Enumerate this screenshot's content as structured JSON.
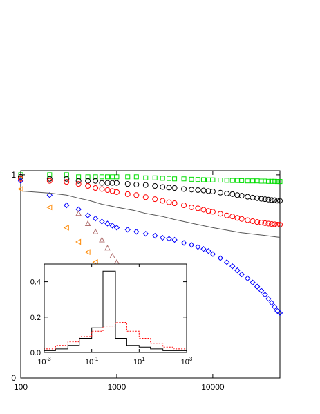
{
  "chart_data": [
    {
      "type": "scatter",
      "title": "",
      "xlabel": "",
      "ylabel": "",
      "x_scale": "log",
      "xlim": [
        100,
        50000
      ],
      "ylim": [
        0,
        1.02
      ],
      "x_ticks": [
        {
          "value": 100,
          "label": "100"
        },
        {
          "value": 1000,
          "label": "1000"
        },
        {
          "value": 10000,
          "label": "10000"
        }
      ],
      "y_ticks": [
        {
          "value": 0,
          "label": "0"
        },
        {
          "value": 1,
          "label": "1"
        }
      ],
      "grid": false,
      "legend": "none",
      "series": [
        {
          "marker": "square",
          "color": "#00dd00",
          "points": [
            [
              100,
              1.0
            ],
            [
              200,
              1.0
            ],
            [
              300,
              1.0
            ],
            [
              400,
              0.99
            ],
            [
              500,
              0.99
            ],
            [
              600,
              0.99
            ],
            [
              700,
              0.99
            ],
            [
              800,
              0.99
            ],
            [
              900,
              0.99
            ],
            [
              1000,
              0.99
            ],
            [
              1300,
              0.99
            ],
            [
              1600,
              0.99
            ],
            [
              2000,
              0.985
            ],
            [
              2500,
              0.985
            ],
            [
              3000,
              0.983
            ],
            [
              3500,
              0.982
            ],
            [
              4000,
              0.98
            ],
            [
              5000,
              0.98
            ],
            [
              6000,
              0.978
            ],
            [
              7000,
              0.977
            ],
            [
              8000,
              0.976
            ],
            [
              9000,
              0.975
            ],
            [
              10000,
              0.975
            ],
            [
              12000,
              0.974
            ],
            [
              14000,
              0.973
            ],
            [
              16000,
              0.972
            ],
            [
              18000,
              0.972
            ],
            [
              20000,
              0.971
            ],
            [
              23000,
              0.97
            ],
            [
              26000,
              0.97
            ],
            [
              29000,
              0.97
            ],
            [
              32000,
              0.969
            ],
            [
              35000,
              0.969
            ],
            [
              38000,
              0.968
            ],
            [
              41000,
              0.968
            ],
            [
              44000,
              0.968
            ],
            [
              47000,
              0.967
            ],
            [
              50000,
              0.967
            ]
          ]
        },
        {
          "marker": "circle",
          "color": "#000000",
          "points": [
            [
              100,
              0.99
            ],
            [
              200,
              0.98
            ],
            [
              300,
              0.98
            ],
            [
              400,
              0.97
            ],
            [
              500,
              0.97
            ],
            [
              600,
              0.97
            ],
            [
              700,
              0.96
            ],
            [
              800,
              0.96
            ],
            [
              900,
              0.96
            ],
            [
              1000,
              0.96
            ],
            [
              1300,
              0.955
            ],
            [
              1600,
              0.952
            ],
            [
              2000,
              0.95
            ],
            [
              2500,
              0.945
            ],
            [
              3000,
              0.94
            ],
            [
              3500,
              0.937
            ],
            [
              4000,
              0.935
            ],
            [
              5000,
              0.93
            ],
            [
              6000,
              0.927
            ],
            [
              7000,
              0.925
            ],
            [
              8000,
              0.923
            ],
            [
              9000,
              0.92
            ],
            [
              10000,
              0.918
            ],
            [
              12000,
              0.912
            ],
            [
              14000,
              0.908
            ],
            [
              16000,
              0.905
            ],
            [
              18000,
              0.9
            ],
            [
              20000,
              0.897
            ],
            [
              23000,
              0.892
            ],
            [
              26000,
              0.888
            ],
            [
              29000,
              0.885
            ],
            [
              32000,
              0.882
            ],
            [
              35000,
              0.88
            ],
            [
              38000,
              0.878
            ],
            [
              41000,
              0.876
            ],
            [
              44000,
              0.875
            ],
            [
              47000,
              0.873
            ],
            [
              50000,
              0.872
            ]
          ]
        },
        {
          "marker": "circle",
          "color": "#ff0000",
          "points": [
            [
              100,
              0.98
            ],
            [
              200,
              0.97
            ],
            [
              300,
              0.965
            ],
            [
              400,
              0.955
            ],
            [
              500,
              0.945
            ],
            [
              600,
              0.935
            ],
            [
              700,
              0.93
            ],
            [
              800,
              0.925
            ],
            [
              900,
              0.92
            ],
            [
              1000,
              0.915
            ],
            [
              1300,
              0.905
            ],
            [
              1600,
              0.9
            ],
            [
              2000,
              0.89
            ],
            [
              2500,
              0.88
            ],
            [
              3000,
              0.872
            ],
            [
              3500,
              0.865
            ],
            [
              4000,
              0.86
            ],
            [
              5000,
              0.85
            ],
            [
              6000,
              0.84
            ],
            [
              7000,
              0.835
            ],
            [
              8000,
              0.828
            ],
            [
              9000,
              0.822
            ],
            [
              10000,
              0.818
            ],
            [
              12000,
              0.808
            ],
            [
              14000,
              0.8
            ],
            [
              16000,
              0.795
            ],
            [
              18000,
              0.788
            ],
            [
              20000,
              0.783
            ],
            [
              23000,
              0.777
            ],
            [
              26000,
              0.772
            ],
            [
              29000,
              0.768
            ],
            [
              32000,
              0.765
            ],
            [
              35000,
              0.762
            ],
            [
              38000,
              0.76
            ],
            [
              41000,
              0.758
            ],
            [
              44000,
              0.757
            ],
            [
              47000,
              0.755
            ],
            [
              50000,
              0.755
            ]
          ]
        },
        {
          "marker": "diamond",
          "color": "#0000ff",
          "points": [
            [
              100,
              0.97
            ],
            [
              200,
              0.9
            ],
            [
              300,
              0.85
            ],
            [
              400,
              0.83
            ],
            [
              500,
              0.8
            ],
            [
              600,
              0.785
            ],
            [
              700,
              0.77
            ],
            [
              800,
              0.76
            ],
            [
              900,
              0.75
            ],
            [
              1000,
              0.74
            ],
            [
              1300,
              0.73
            ],
            [
              1600,
              0.72
            ],
            [
              2000,
              0.71
            ],
            [
              2500,
              0.7
            ],
            [
              3000,
              0.69
            ],
            [
              3500,
              0.685
            ],
            [
              4000,
              0.68
            ],
            [
              5000,
              0.665
            ],
            [
              6000,
              0.655
            ],
            [
              7000,
              0.645
            ],
            [
              8000,
              0.635
            ],
            [
              9000,
              0.625
            ],
            [
              10000,
              0.61
            ],
            [
              12000,
              0.59
            ],
            [
              14000,
              0.57
            ],
            [
              16000,
              0.55
            ],
            [
              18000,
              0.53
            ],
            [
              20000,
              0.51
            ],
            [
              23000,
              0.49
            ],
            [
              26000,
              0.47
            ],
            [
              29000,
              0.45
            ],
            [
              32000,
              0.43
            ],
            [
              35000,
              0.41
            ],
            [
              38000,
              0.39
            ],
            [
              41000,
              0.37
            ],
            [
              44000,
              0.35
            ],
            [
              47000,
              0.33
            ],
            [
              50000,
              0.32
            ]
          ]
        },
        {
          "marker": "triangle",
          "color": "#b07070",
          "points": [
            [
              400,
              0.81
            ],
            [
              500,
              0.76
            ],
            [
              600,
              0.72
            ],
            [
              700,
              0.68
            ],
            [
              800,
              0.64
            ],
            [
              900,
              0.6
            ],
            [
              1000,
              0.57
            ],
            [
              1100,
              0.54
            ],
            [
              1200,
              0.51
            ],
            [
              1300,
              0.48
            ],
            [
              1400,
              0.45
            ],
            [
              1500,
              0.43
            ],
            [
              1600,
              0.41
            ]
          ]
        },
        {
          "marker": "triangle-left",
          "color": "#ff8800",
          "points": [
            [
              100,
              0.93
            ],
            [
              200,
              0.84
            ],
            [
              300,
              0.74
            ],
            [
              400,
              0.67
            ],
            [
              500,
              0.62
            ],
            [
              600,
              0.57
            ]
          ]
        },
        {
          "marker": "line",
          "color": "#555555",
          "points": [
            [
              100,
              0.92
            ],
            [
              200,
              0.91
            ],
            [
              300,
              0.9
            ],
            [
              400,
              0.885
            ],
            [
              500,
              0.875
            ],
            [
              600,
              0.865
            ],
            [
              700,
              0.855
            ],
            [
              800,
              0.85
            ],
            [
              900,
              0.845
            ],
            [
              1000,
              0.84
            ],
            [
              1500,
              0.825
            ],
            [
              2000,
              0.81
            ],
            [
              3000,
              0.795
            ],
            [
              4000,
              0.78
            ],
            [
              5000,
              0.77
            ],
            [
              7000,
              0.755
            ],
            [
              10000,
              0.74
            ],
            [
              15000,
              0.725
            ],
            [
              20000,
              0.715
            ],
            [
              30000,
              0.705
            ],
            [
              40000,
              0.698
            ],
            [
              50000,
              0.692
            ]
          ]
        }
      ]
    },
    {
      "type": "line",
      "title": "",
      "xlabel": "",
      "ylabel": "",
      "x_scale": "log",
      "xlim": [
        0.001,
        1000
      ],
      "ylim": [
        0,
        0.5
      ],
      "x_ticks": [
        {
          "value": 0.001,
          "base": "10",
          "exp": "-3"
        },
        {
          "value": 0.1,
          "base": "10",
          "exp": "-1"
        },
        {
          "value": 10,
          "base": "10",
          "exp": "1"
        },
        {
          "value": 1000,
          "base": "10",
          "exp": "3"
        }
      ],
      "y_ticks": [
        {
          "value": 0,
          "label": "0.0"
        },
        {
          "value": 0.2,
          "label": "0.2"
        },
        {
          "value": 0.4,
          "label": "0.4"
        }
      ],
      "grid": false,
      "legend": "none",
      "series": [
        {
          "style": "solid-step",
          "color": "#000000",
          "bin_edges": [
            0.001,
            0.003,
            0.01,
            0.03,
            0.1,
            0.3,
            1,
            3,
            10,
            30,
            100,
            300,
            1000
          ],
          "values": [
            0.01,
            0.02,
            0.04,
            0.08,
            0.14,
            0.46,
            0.08,
            0.04,
            0.03,
            0.02,
            0.01,
            0.01
          ]
        },
        {
          "style": "dotted-step",
          "color": "#ff0000",
          "bin_edges": [
            0.001,
            0.003,
            0.01,
            0.03,
            0.1,
            0.3,
            1,
            3,
            10,
            30,
            100,
            300,
            1000
          ],
          "values": [
            0.02,
            0.04,
            0.06,
            0.09,
            0.12,
            0.15,
            0.17,
            0.12,
            0.08,
            0.05,
            0.03,
            0.02
          ]
        }
      ]
    }
  ]
}
